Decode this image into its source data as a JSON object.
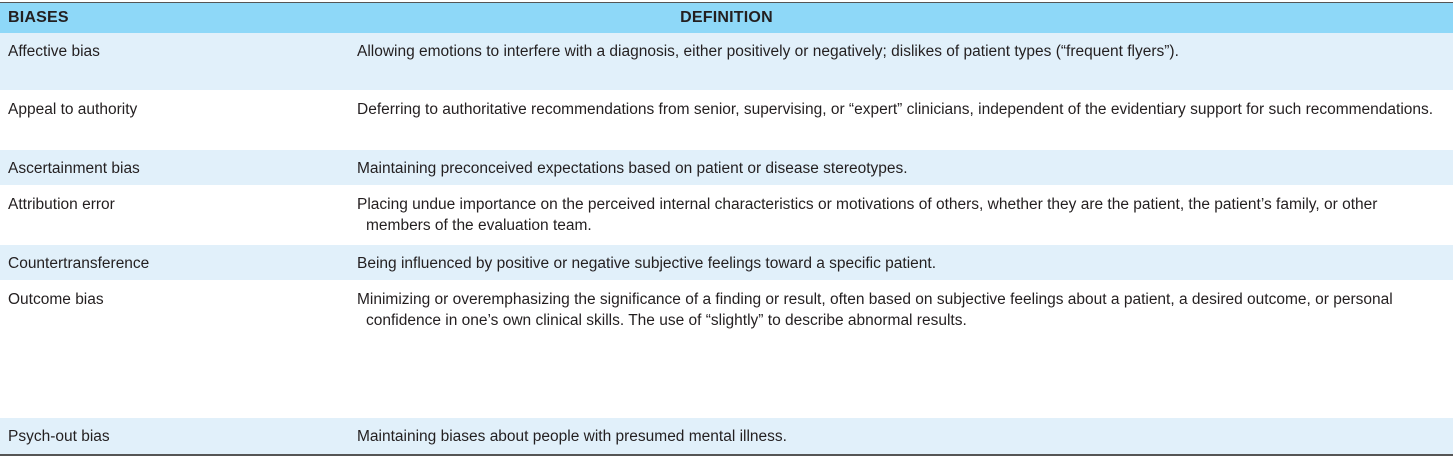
{
  "header": {
    "col1": "BIASES",
    "col2": "DEFINITION"
  },
  "colors": {
    "header_bg": "#8ed8f8",
    "row_shade": "#e1f0fa",
    "text": "#231f20"
  },
  "rows": [
    {
      "term": "Affective bias",
      "definition": "Allowing emotions to interfere with a diagnosis, either positively or negatively; dislikes of patient types (“frequent flyers”)."
    },
    {
      "term": "Appeal to authority",
      "definition": "Deferring to authoritative recommendations from senior, supervising, or “expert” clinicians, independent of the evidentiary support for such recommendations."
    },
    {
      "term": "Ascertainment bias",
      "definition": "Maintaining preconceived expectations based on patient or disease stereotypes."
    },
    {
      "term": "Attribution error",
      "definition": "Placing undue importance on the perceived internal characteristics or motivations of others, whether they are the patient, the patient’s family, or other members of the evaluation team."
    },
    {
      "term": "Countertransference",
      "definition": "Being influenced by positive or negative subjective feelings toward a specific patient."
    },
    {
      "term": "Outcome bias",
      "definition": "Minimizing or overemphasizing the significance of a finding or result, often based on subjective feelings about a patient, a desired outcome, or personal confidence in one’s own clinical skills. The use of “slightly” to describe abnormal results."
    },
    {
      "term": "Psych-out bias",
      "definition": "Maintaining biases about people with presumed mental illness."
    }
  ]
}
